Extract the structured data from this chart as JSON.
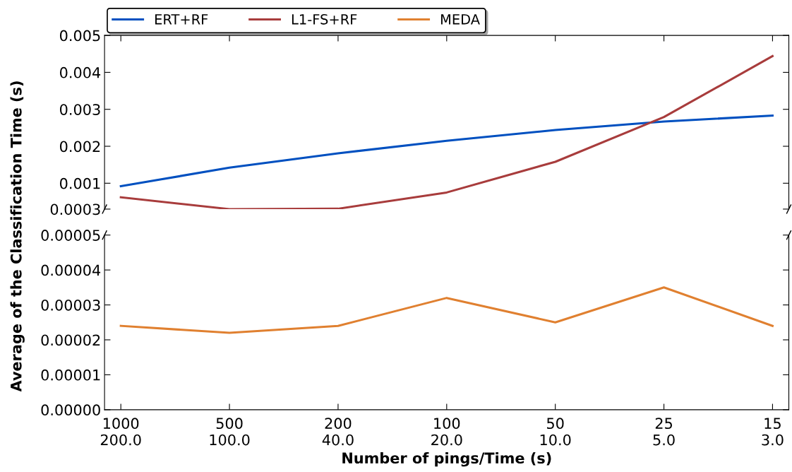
{
  "chart_data": [
    {
      "type": "line",
      "series": [
        {
          "name": "ERT+RF",
          "color": "#0050c0",
          "values": [
            0.00092,
            0.00142,
            0.00181,
            0.00215,
            0.00244,
            0.00267,
            0.00283
          ]
        },
        {
          "name": "L1-FS+RF",
          "color": "#a83c3c",
          "values": [
            0.00062,
            0.0003,
            0.00031,
            0.00075,
            0.00158,
            0.00279,
            0.00444
          ]
        }
      ],
      "ylim": [
        0.0003,
        0.005
      ],
      "yticks": [
        0.0003,
        0.001,
        0.002,
        0.003,
        0.004,
        0.005
      ],
      "tick_labels": "y",
      "legend": "top left",
      "grid": false
    },
    {
      "type": "line",
      "categories": [
        "1000\n200.0",
        "500\n100.0",
        "200\n40.0",
        "100\n20.0",
        "50\n10.0",
        "25\n5.0",
        "15\n3.0"
      ],
      "series": [
        {
          "name": "MEDA",
          "color": "#e08030",
          "values": [
            2.4e-05,
            2.2e-05,
            2.4e-05,
            3.2e-05,
            2.5e-05,
            3.5e-05,
            2.4e-05
          ]
        }
      ],
      "ylim": [
        0,
        5e-05
      ],
      "yticks": [
        {
          "value": 0,
          "label": "0.00000"
        },
        {
          "value": 1e-05,
          "label": "0.00001"
        },
        {
          "value": 2e-05,
          "label": "0.00002"
        },
        {
          "value": 3e-05,
          "label": "0.00003"
        },
        {
          "value": 4e-05,
          "label": "0.00004"
        },
        {
          "value": 5e-05,
          "label": "0.00005"
        }
      ],
      "xlabel": "Number of pings/Time (s)",
      "ylabel": "Average of the Classification Time (s)",
      "grid": false
    }
  ]
}
